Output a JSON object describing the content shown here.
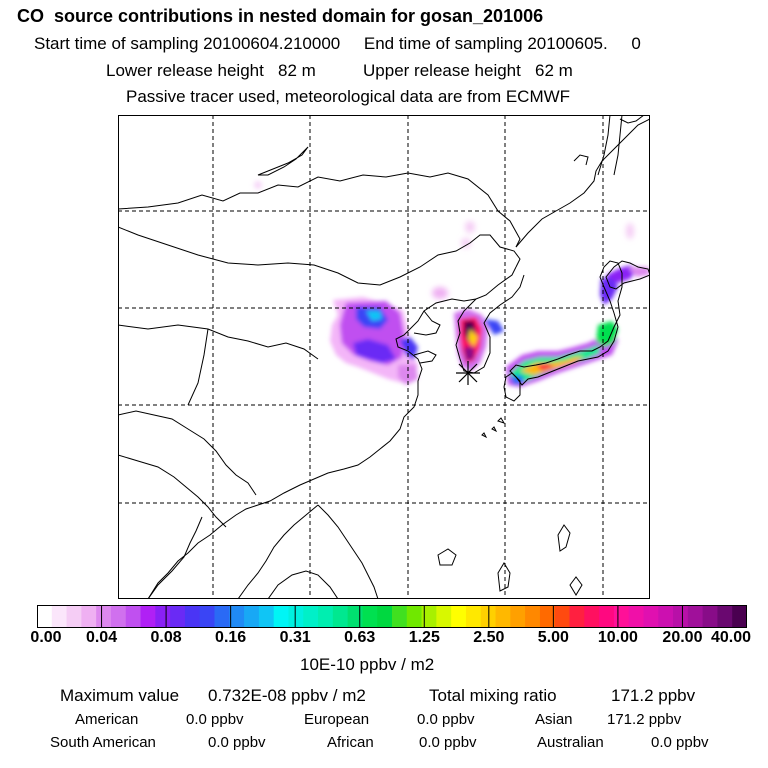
{
  "header": {
    "title": "CO  source contributions in nested domain for gosan_201006",
    "start_label": "Start time of sampling",
    "start_value": "20100604.210000",
    "end_label": "End time of sampling",
    "end_value": "20100605.     0",
    "lower_label": "Lower release height",
    "lower_value": "82 m",
    "upper_label": "Upper release height",
    "upper_value": "62 m",
    "note": "Passive tracer used, meteorological data are from ECMWF"
  },
  "colorbar": {
    "ticks": [
      "0.00",
      "0.04",
      "0.08",
      "0.16",
      "0.31",
      "0.63",
      "1.25",
      "2.50",
      "5.00",
      "10.00",
      "20.00",
      "40.00"
    ],
    "units": "10E-10 ppbv / m2",
    "colors": [
      "#ffffff",
      "#fbe6fb",
      "#f5cdf5",
      "#efb0f2",
      "#dd88ee",
      "#d070ee",
      "#c050f0",
      "#b020f5",
      "#8a20f5",
      "#6a2af5",
      "#4a35f5",
      "#3a45f5",
      "#2a6af5",
      "#208af5",
      "#18a8f5",
      "#10c5f5",
      "#00f5f5",
      "#00f0e0",
      "#00f0c8",
      "#00eeb0",
      "#00e890",
      "#00e070",
      "#00e050",
      "#00d840",
      "#40e020",
      "#70e800",
      "#a8f000",
      "#d8f800",
      "#ffff00",
      "#ffe800",
      "#ffd000",
      "#ffb800",
      "#ffa000",
      "#ff8800",
      "#ff6a00",
      "#ff4a10",
      "#ff2040",
      "#ff1060",
      "#ff0880",
      "#ff1098",
      "#f010a8",
      "#e010b0",
      "#cc10b0",
      "#b810a8",
      "#a0109a",
      "#880c88",
      "#6a0870",
      "#4a0050"
    ]
  },
  "summary": {
    "max_label": "Maximum value",
    "max_value": "0.732E-08 ppbv / m2",
    "total_label": "Total mixing ratio",
    "total_value": "171.2 ppbv",
    "regions": [
      {
        "name": "American",
        "value": "0.0 ppbv"
      },
      {
        "name": "European",
        "value": "0.0 ppbv"
      },
      {
        "name": "Asian",
        "value": "171.2 ppbv"
      },
      {
        "name": "South American",
        "value": "0.0 ppbv"
      },
      {
        "name": "African",
        "value": "0.0 ppbv"
      },
      {
        "name": "Australian",
        "value": "0.0 ppbv"
      }
    ]
  },
  "map": {
    "receptor_symbol": "asterisk",
    "grid": "dashed"
  }
}
